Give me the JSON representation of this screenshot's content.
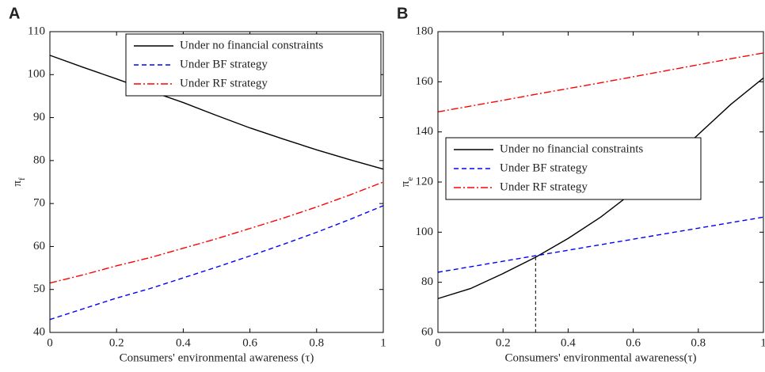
{
  "chart_data": [
    {
      "type": "line",
      "panel": "A",
      "x": [
        0,
        0.1,
        0.2,
        0.3,
        0.4,
        0.5,
        0.6,
        0.7,
        0.8,
        0.9,
        1
      ],
      "xlabel": "Consumers' environmental awareness (τ)",
      "ylabel": "π",
      "ylabel_subscript": "f",
      "xlim": [
        0,
        1
      ],
      "xticks": [
        0,
        0.2,
        0.4,
        0.6,
        0.8,
        1
      ],
      "ylim": [
        40,
        110
      ],
      "yticks": [
        40,
        50,
        60,
        70,
        80,
        90,
        100,
        110
      ],
      "legend": "upper right",
      "series": [
        {
          "name": "Under no financial constraints",
          "color": "#000000",
          "dash": "solid",
          "values": [
            104.5,
            101.7,
            99,
            96.2,
            93.5,
            90.5,
            87.6,
            85,
            82.5,
            80.2,
            78
          ]
        },
        {
          "name": "Under BF strategy",
          "color": "#0000ff",
          "dash": "dashed",
          "values": [
            43,
            45.5,
            48,
            50.2,
            52.7,
            55.2,
            57.8,
            60.5,
            63.3,
            66.3,
            69.5
          ]
        },
        {
          "name": "Under RF strategy",
          "color": "#ff0000",
          "dash": "dashdot",
          "values": [
            51.5,
            53.4,
            55.5,
            57.4,
            59.6,
            61.8,
            64.2,
            66.6,
            69.2,
            72,
            75
          ]
        }
      ]
    },
    {
      "type": "line",
      "panel": "B",
      "x": [
        0,
        0.1,
        0.2,
        0.3,
        0.4,
        0.5,
        0.6,
        0.7,
        0.8,
        0.9,
        1
      ],
      "xlabel": "Consumers' environmental awareness(τ)",
      "ylabel": "π",
      "ylabel_subscript": "e",
      "xlim": [
        0,
        1
      ],
      "xticks": [
        0,
        0.2,
        0.4,
        0.6,
        0.8,
        1
      ],
      "ylim": [
        60,
        180
      ],
      "yticks": [
        60,
        80,
        100,
        120,
        140,
        160,
        180
      ],
      "legend": "center left",
      "vline": {
        "x": 0.3,
        "y": 90
      },
      "series": [
        {
          "name": "Under no financial constraints",
          "color": "#000000",
          "dash": "solid",
          "values": [
            73.5,
            77.5,
            83.5,
            90,
            97.5,
            106,
            116,
            127,
            139,
            151,
            161.5
          ]
        },
        {
          "name": "Under BF strategy",
          "color": "#0000ff",
          "dash": "dashed",
          "values": [
            84,
            86.2,
            88.4,
            90.6,
            92.8,
            95,
            97.2,
            99.4,
            101.6,
            103.8,
            106
          ]
        },
        {
          "name": "Under RF strategy",
          "color": "#ff0000",
          "dash": "dashdot",
          "values": [
            148,
            150.3,
            152.6,
            155,
            157.3,
            159.6,
            162,
            164.4,
            166.8,
            169.2,
            171.5
          ]
        }
      ]
    }
  ]
}
